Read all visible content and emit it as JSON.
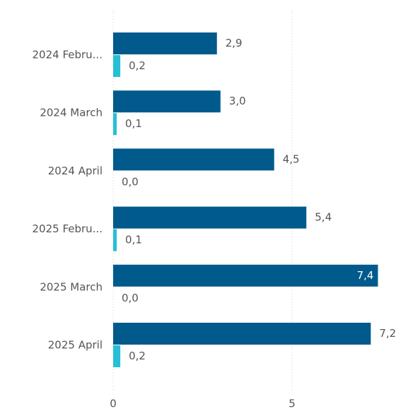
{
  "chart_data": {
    "type": "bar",
    "orientation": "horizontal",
    "categories": [
      "2024 Febru...",
      "2024 March",
      "2024 April",
      "2025 Febru...",
      "2025 March",
      "2025 April"
    ],
    "series": [
      {
        "color": "#005a8c",
        "values": [
          2.9,
          3.0,
          4.5,
          5.4,
          7.4,
          7.2
        ],
        "value_labels": [
          "2,9",
          "3,0",
          "4,5",
          "5,4",
          "7,4",
          "7,2"
        ]
      },
      {
        "color": "#26bfd6",
        "values": [
          0.2,
          0.1,
          0.0,
          0.1,
          0.0,
          0.2
        ],
        "value_labels": [
          "0,2",
          "0,1",
          "0,0",
          "0,1",
          "0,0",
          "0,2"
        ]
      }
    ],
    "xlim": [
      0,
      8.24
    ],
    "xticks": [
      0,
      5
    ],
    "grid": true
  }
}
